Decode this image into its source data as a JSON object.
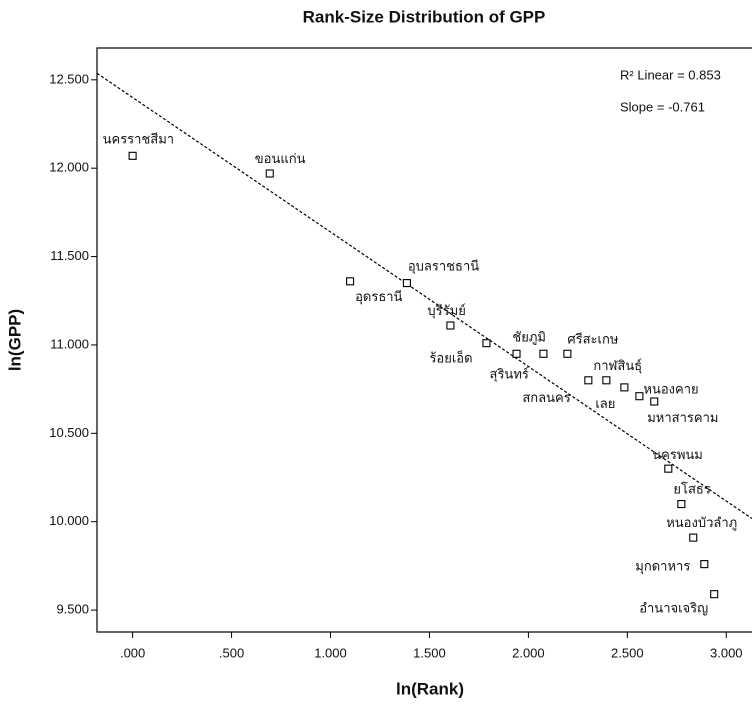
{
  "chart_data": {
    "type": "scatter",
    "title": "Rank-Size Distribution of GPP",
    "x_label": "ln(Rank)",
    "y_label": "ln(GPP)",
    "annotations": [
      "R² Linear = 0.853",
      "Slope = -0.761"
    ],
    "x": [
      0,
      0.693,
      1.099,
      1.386,
      1.606,
      1.788,
      1.94,
      2.076,
      2.197,
      2.303,
      2.394,
      2.485,
      2.561,
      2.636,
      2.707,
      2.773,
      2.833,
      2.889,
      2.939
    ],
    "y": [
      12.07,
      11.97,
      11.36,
      11.35,
      11.11,
      11.01,
      10.95,
      10.95,
      10.95,
      10.8,
      10.8,
      10.76,
      10.71,
      10.68,
      10.3,
      10.1,
      9.91,
      9.76,
      9.59
    ],
    "labels": [
      "นครราชสีมา",
      "ขอนแก่น",
      "อุดรธานี",
      "อุบลราชธานี",
      "บุรีรัมย์",
      "ร้อยเอ็ด",
      "สุรินทร์",
      "ชัยภูมิ",
      "ศรีสะเกษ",
      "สกลนคร",
      "เลย",
      "กาฬสินธุ์",
      "หนองคาย",
      "มหาสารคาม",
      "นครพนม",
      "ยโสธร",
      "หนองบัวลำภู",
      "มุกดาหาร",
      "อำนาจเจริญ"
    ],
    "fit_line": {
      "x": [
        -0.18,
        3.13
      ],
      "y": [
        12.537,
        10.018
      ]
    },
    "color": "#000000",
    "xlim": [
      -0.18,
      3.13
    ],
    "ylim": [
      9.376,
      12.68
    ],
    "xticks": [
      {
        "value": 0,
        "label": ".000"
      },
      {
        "value": 0.5,
        "label": ".500"
      },
      {
        "value": 1,
        "label": "1.000"
      },
      {
        "value": 1.5,
        "label": "1.500"
      },
      {
        "value": 2,
        "label": "2.000"
      },
      {
        "value": 2.5,
        "label": "2.500"
      },
      {
        "value": 3,
        "label": "3.000"
      }
    ],
    "yticks": [
      {
        "value": 9.5,
        "label": "9.500"
      },
      {
        "value": 10,
        "label": "10.000"
      },
      {
        "value": 10.5,
        "label": "10.500"
      },
      {
        "value": 11,
        "label": "11.000"
      },
      {
        "value": 11.5,
        "label": "11.500"
      },
      {
        "value": 12,
        "label": "12.000"
      },
      {
        "value": 12.5,
        "label": "12.500"
      }
    ]
  }
}
